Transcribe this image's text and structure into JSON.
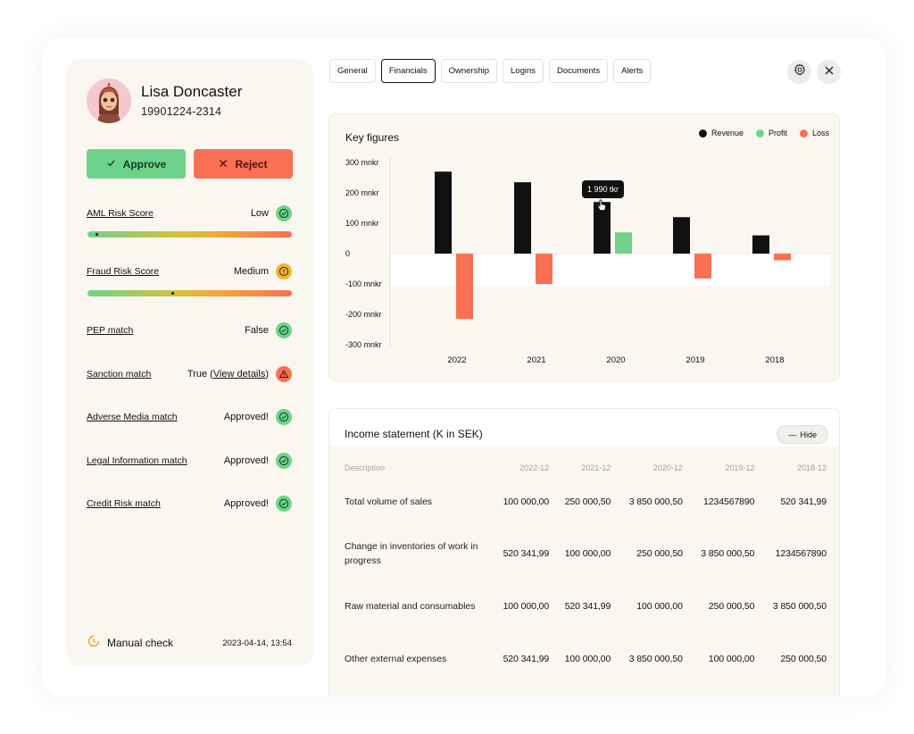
{
  "profile": {
    "name": "Lisa Doncaster",
    "personal_id": "19901224-2314"
  },
  "actions": {
    "approve_label": "Approve",
    "reject_label": "Reject"
  },
  "checks": [
    {
      "label": "AML Risk Score",
      "value": "Low",
      "status": "green",
      "icon": "check-icon",
      "gauge_level": 0.04
    },
    {
      "label": "Fraud Risk Score",
      "value": "Medium",
      "status": "yellow",
      "icon": "info-icon",
      "gauge_level": 0.41
    },
    {
      "label": "PEP match",
      "value": "False",
      "status": "green",
      "icon": "check-icon"
    },
    {
      "label": "Sanction match",
      "value": "True",
      "link": "View details",
      "status": "red",
      "icon": "warning-icon"
    },
    {
      "label": "Adverse Media match",
      "value": "Approved!",
      "status": "green",
      "icon": "check-icon"
    },
    {
      "label": "Legal Information match",
      "value": "Approved!",
      "status": "green",
      "icon": "check-icon"
    },
    {
      "label": "Credit Risk match",
      "value": "Approved!",
      "status": "green",
      "icon": "check-icon"
    }
  ],
  "footer": {
    "manual_check_label": "Manual check",
    "date": "2023-04-14, 13:54"
  },
  "tabs": [
    "General",
    "Financials",
    "Ownership",
    "Logins",
    "Documents",
    "Alerts"
  ],
  "active_tab": "Financials",
  "toolbar_icons": [
    "gear-icon",
    "close-icon"
  ],
  "key_figures": {
    "title": "Key figures",
    "tooltip": "1 990 tkr"
  },
  "chart_data": {
    "type": "bar",
    "categories": [
      "2022",
      "2021",
      "2020",
      "2019",
      "2018"
    ],
    "series": [
      {
        "name": "Revenue",
        "color": "#111111",
        "values": [
          270,
          235,
          170,
          120,
          60
        ]
      },
      {
        "name": "Profit",
        "color": "#6ed389",
        "values": [
          0,
          0,
          70,
          0,
          0
        ]
      },
      {
        "name": "Loss",
        "color": "#fb6f55",
        "values": [
          -215,
          -100,
          0,
          -82,
          -22
        ]
      }
    ],
    "yticks": [
      "300 mnkr",
      "200 mnkr",
      "100 mnkr",
      "0",
      "-100 mnkr",
      "-200 mnkr",
      "-300 mnkr"
    ],
    "ylim": [
      -300,
      300
    ],
    "legend_position": "top-right"
  },
  "income_statement": {
    "title": "Income statement (K in SEK)",
    "hide_label": "Hide",
    "columns": [
      "Description",
      "2022-12",
      "2021-12",
      "2020-12",
      "2019-12",
      "2018-12"
    ],
    "rows": [
      {
        "description": "Total volume of sales",
        "values": [
          "100 000,00",
          "250 000,50",
          "3 850 000,50",
          "1234567890",
          "520 341,99"
        ]
      },
      {
        "description": "Change in inventories of work in progress",
        "values": [
          "520 341,99",
          "100 000,00",
          "250 000,50",
          "3 850 000,50",
          "1234567890"
        ]
      },
      {
        "description": "Raw material and consumables",
        "values": [
          "100 000,00",
          "520 341,99",
          "100 000,00",
          "250 000,50",
          "3 850 000,50"
        ]
      },
      {
        "description": "Other external expenses",
        "values": [
          "520 341,99",
          "100 000,00",
          "3 850 000,50",
          "100 000,00",
          "250 000,50"
        ]
      }
    ]
  }
}
